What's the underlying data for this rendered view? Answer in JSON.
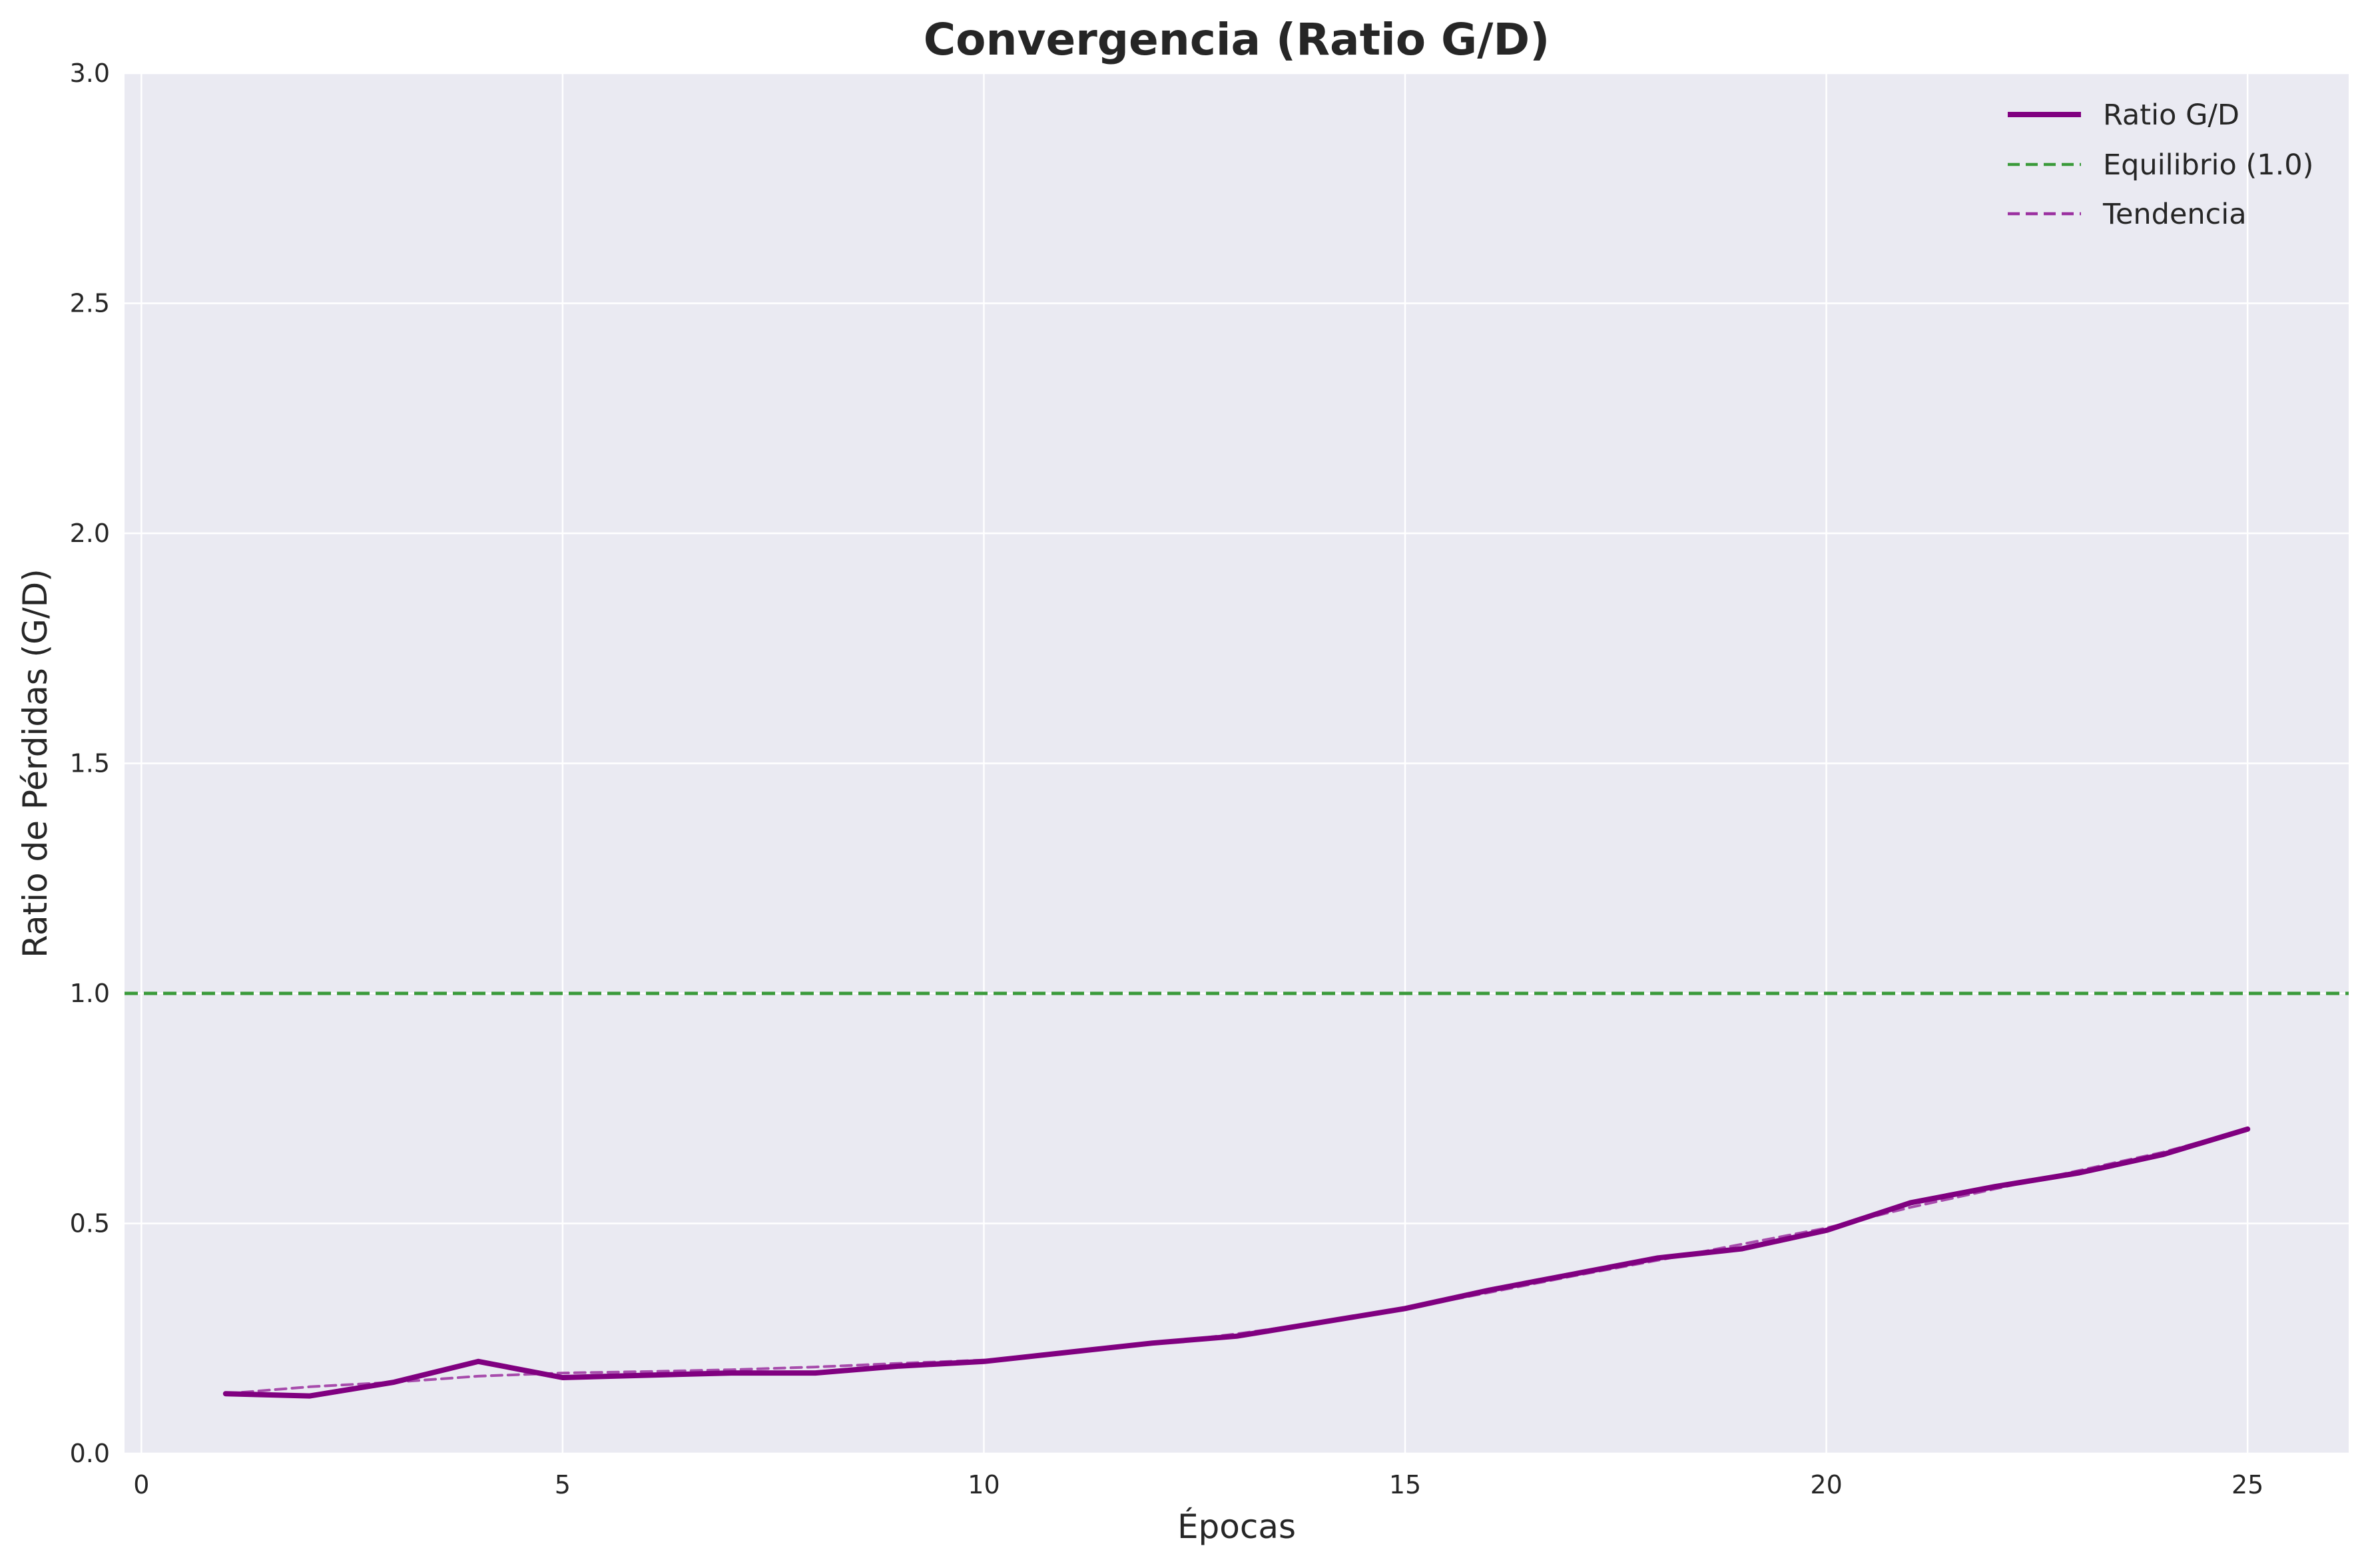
{
  "chart_data": {
    "type": "line",
    "title": "Convergencia (Ratio G/D)",
    "xlabel": "Épocas",
    "ylabel": "Ratio de Pérdidas (G/D)",
    "xlim": [
      -0.2,
      26.2
    ],
    "ylim": [
      0,
      3
    ],
    "xticks": [
      0,
      5,
      10,
      15,
      20,
      25
    ],
    "yticks": [
      0.0,
      0.5,
      1.0,
      1.5,
      2.0,
      2.5,
      3.0
    ],
    "ytick_labels": [
      "0.0",
      "0.5",
      "1.0",
      "1.5",
      "2.0",
      "2.5",
      "3.0"
    ],
    "grid": true,
    "legend_position": "top-right",
    "x": [
      1,
      2,
      3,
      4,
      5,
      6,
      7,
      8,
      9,
      10,
      11,
      12,
      13,
      14,
      15,
      16,
      17,
      18,
      19,
      20,
      21,
      22,
      23,
      24,
      25
    ],
    "series": [
      {
        "name": "Ratio G/D",
        "color": "#800080",
        "style": "solid",
        "values": [
          0.13,
          0.125,
          0.155,
          0.2,
          0.165,
          0.17,
          0.175,
          0.175,
          0.19,
          0.2,
          0.22,
          0.24,
          0.255,
          0.285,
          0.315,
          0.355,
          0.39,
          0.425,
          0.445,
          0.485,
          0.545,
          0.58,
          0.61,
          0.65,
          0.705
        ]
      },
      {
        "name": "Tendencia",
        "color": "#9b30a0",
        "style": "dashed",
        "values": [
          0.13,
          0.145,
          0.155,
          0.168,
          0.175,
          0.178,
          0.182,
          0.188,
          0.196,
          0.203,
          0.218,
          0.238,
          0.26,
          0.285,
          0.315,
          0.35,
          0.386,
          0.42,
          0.455,
          0.49,
          0.535,
          0.575,
          0.615,
          0.655,
          0.705
        ]
      }
    ],
    "reference_lines": [
      {
        "name": "Equilibrio (1.0)",
        "y": 1.0,
        "color": "#3a9a3a",
        "style": "dashed"
      }
    ],
    "legend": [
      {
        "label": "Ratio G/D",
        "color": "#800080",
        "style": "solid"
      },
      {
        "label": "Equilibrio (1.0)",
        "color": "#3a9a3a",
        "style": "dashed"
      },
      {
        "label": "Tendencia",
        "color": "#9b30a0",
        "style": "dashed"
      }
    ],
    "colors": {
      "background": "#eaeaf2",
      "grid": "#ffffff"
    }
  }
}
